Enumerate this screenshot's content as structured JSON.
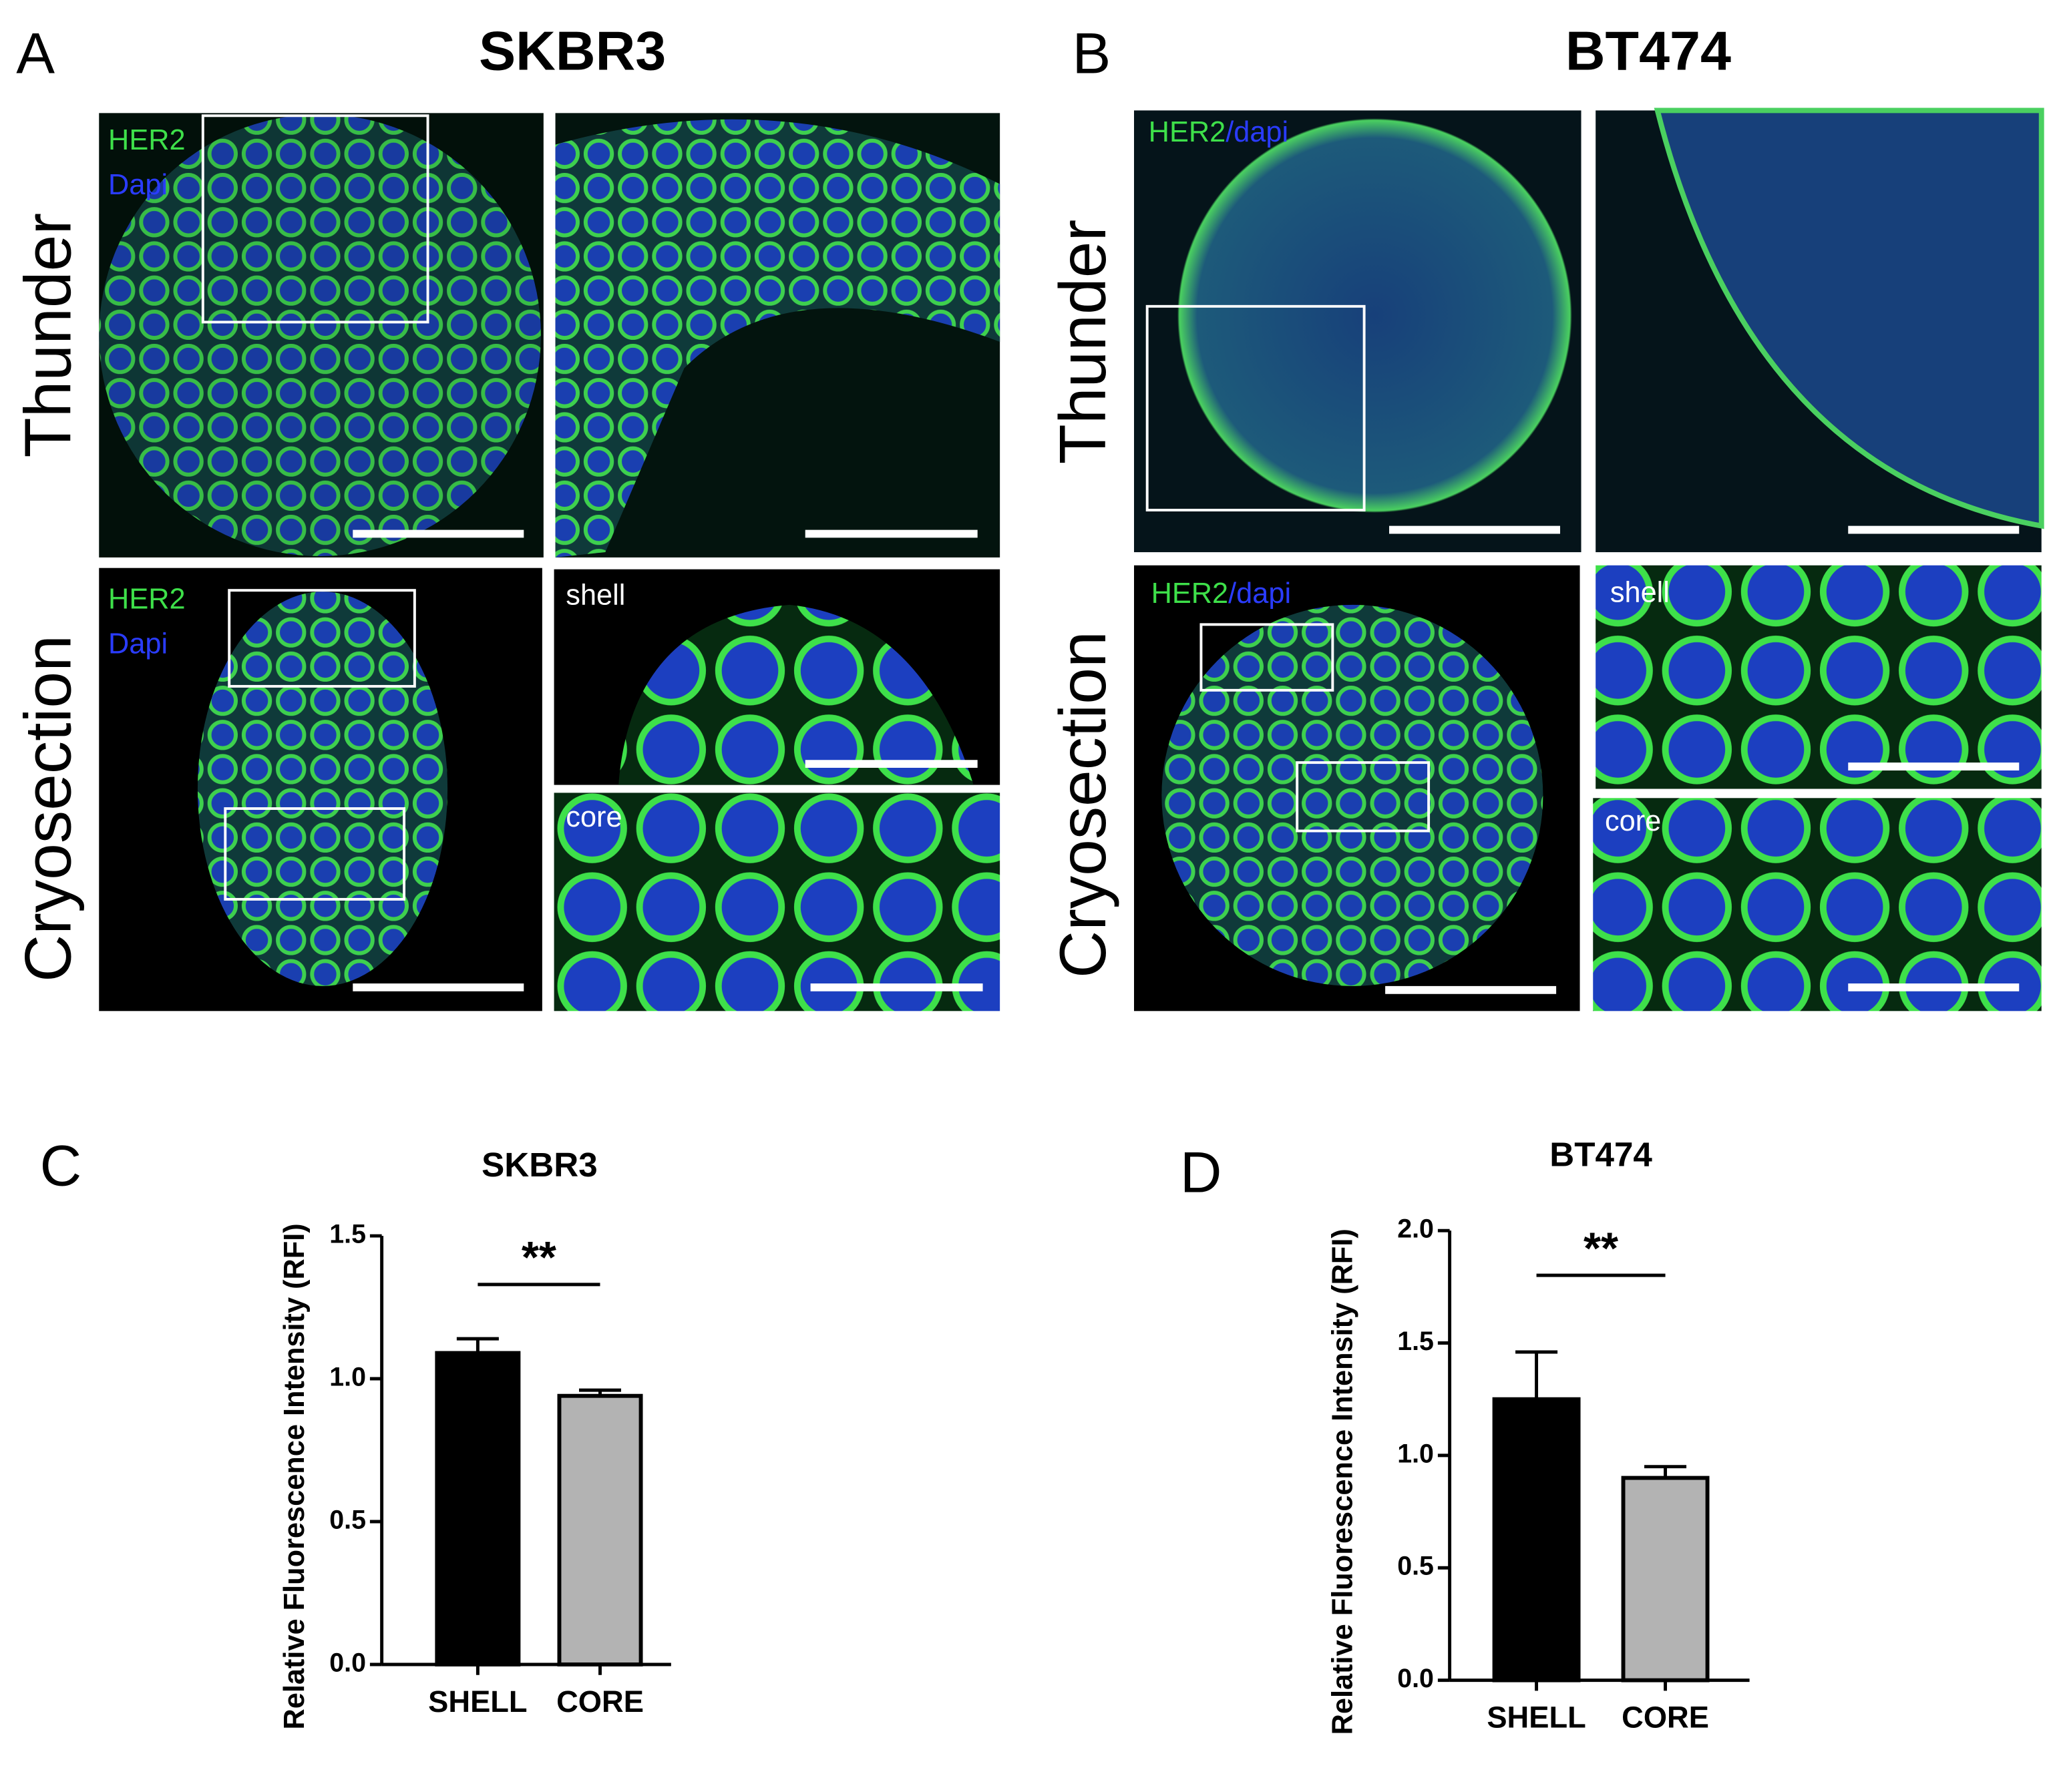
{
  "panels": {
    "A": {
      "label": "A",
      "title": "SKBR3",
      "row_labels": [
        "Thunder",
        "Cryosection"
      ],
      "stain_labels": [
        "HER2",
        "Dapi"
      ],
      "insets": [
        "shell",
        "core"
      ]
    },
    "B": {
      "label": "B",
      "title": "BT474",
      "row_labels": [
        "Thunder",
        "Cryosection"
      ],
      "stain_labels": [
        "HER2",
        "/dapi"
      ],
      "insets": [
        "shell",
        "core"
      ]
    }
  },
  "chart_data": [
    {
      "type": "bar",
      "label": "C",
      "title": "SKBR3",
      "ylabel": "Relative Fluorescence Intensity (RFI)",
      "categories": [
        "SHELL",
        "CORE"
      ],
      "values": [
        1.09,
        0.94
      ],
      "errors": [
        0.05,
        0.02
      ],
      "colors": [
        "#000000",
        "#b3b3b3"
      ],
      "annotation": "**",
      "ylim": [
        0,
        1.5
      ],
      "yticks": [
        {
          "value": 0,
          "label": "0.0"
        },
        {
          "value": 0.5,
          "label": "0.5"
        },
        {
          "value": 1,
          "label": "1.0"
        },
        {
          "value": 1.5,
          "label": "1.5"
        }
      ]
    },
    {
      "type": "bar",
      "label": "D",
      "title": "BT474",
      "ylabel": "Relative Fluorescence Intensity (RFI)",
      "categories": [
        "SHELL",
        "CORE"
      ],
      "values": [
        1.25,
        0.9
      ],
      "errors": [
        0.21,
        0.05
      ],
      "colors": [
        "#000000",
        "#b3b3b3"
      ],
      "annotation": "**",
      "ylim": [
        0,
        2
      ],
      "yticks": [
        {
          "value": 0,
          "label": "0.0"
        },
        {
          "value": 0.5,
          "label": "0.5"
        },
        {
          "value": 1,
          "label": "1.0"
        },
        {
          "value": 1.5,
          "label": "1.5"
        },
        {
          "value": 2,
          "label": "2.0"
        }
      ]
    }
  ]
}
